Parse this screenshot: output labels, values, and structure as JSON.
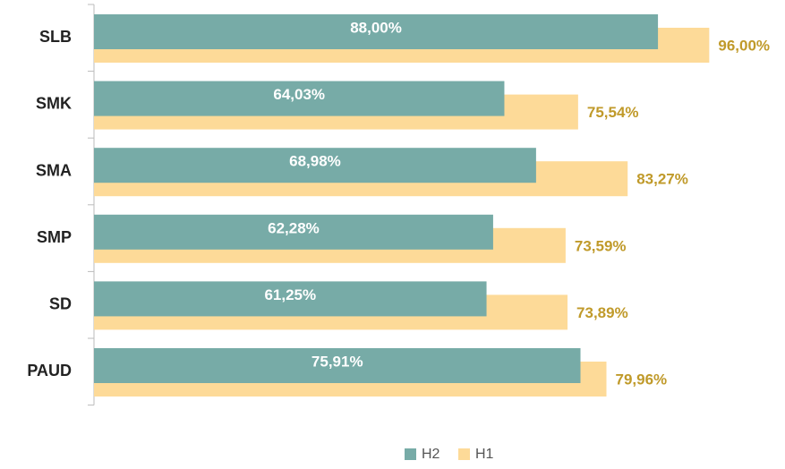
{
  "chart_data": {
    "type": "barh",
    "categories": [
      "SLB",
      "SMK",
      "SMA",
      "SMP",
      "SD",
      "PAUD"
    ],
    "series": [
      {
        "name": "H2",
        "color": "#77aba7",
        "label_color": "#ffffff",
        "values": [
          88.0,
          64.03,
          68.98,
          62.28,
          61.25,
          75.91
        ],
        "value_labels": [
          "88,00%",
          "64,03%",
          "68,98%",
          "62,28%",
          "61,25%",
          "75,91%"
        ]
      },
      {
        "name": "H1",
        "color": "#fdda98",
        "label_color": "#c09a2a",
        "values": [
          96.0,
          75.54,
          83.27,
          73.59,
          73.89,
          79.96
        ],
        "value_labels": [
          "96,00%",
          "75,54%",
          "83,27%",
          "73,59%",
          "73,89%",
          "79,96%"
        ]
      }
    ],
    "legend": "bottom"
  }
}
